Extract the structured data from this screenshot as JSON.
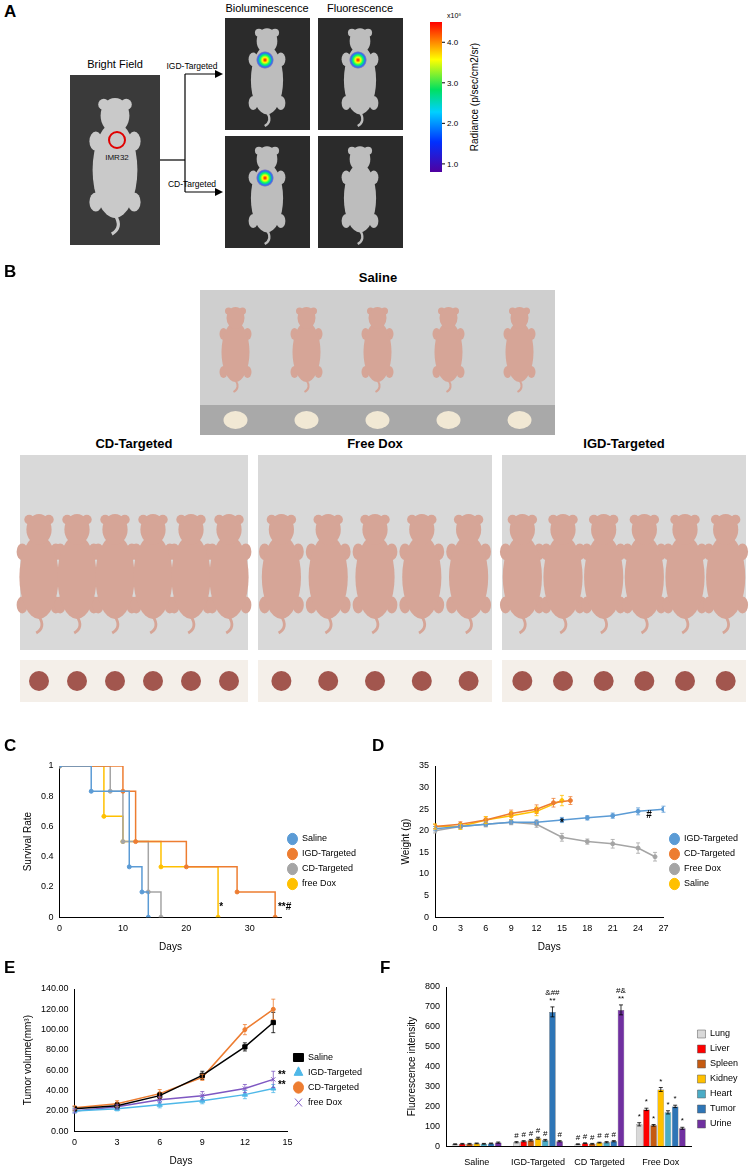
{
  "panel_labels": [
    "A",
    "B",
    "C",
    "D",
    "E",
    "F"
  ],
  "panel_a": {
    "bright_field": "Bright Field",
    "tumor_label": "IMR32",
    "columns": [
      "Bioluminescence",
      "Fluorescence"
    ],
    "rows": [
      {
        "label": "IGD-Targeted",
        "signals": [
          true,
          true
        ]
      },
      {
        "label": "CD-Targeted",
        "signals": [
          true,
          false
        ]
      }
    ],
    "colorbar": {
      "title": "Radiance (p/sec/cm2/sr)",
      "range": [
        0.8,
        4.5
      ],
      "ticks": [
        {
          "value": 1,
          "label": "1.0"
        },
        {
          "value": 2,
          "label": "2.0"
        },
        {
          "value": 3,
          "label": "3.0"
        },
        {
          "value": 4,
          "label": "4.0"
        }
      ],
      "multiplier": "x10⁸"
    }
  },
  "panel_b": {
    "groups": [
      {
        "label": "Saline",
        "mice": 5,
        "tumors": 5
      },
      {
        "label": "CD-Targeted",
        "mice": 6,
        "tumors": 6
      },
      {
        "label": "Free Dox",
        "mice": 5,
        "tumors": 5
      },
      {
        "label": "IGD-Targeted",
        "mice": 6,
        "tumors": 6
      }
    ]
  },
  "chart_data": [
    {
      "type": "line",
      "line_style": "step",
      "marker": "circle",
      "x_label": "Days",
      "y_label": "Survival Rate",
      "xlim": [
        0,
        35
      ],
      "xticks": [
        0,
        10,
        20,
        30
      ],
      "ylim": [
        0,
        1
      ],
      "yticks": [
        0,
        0.2,
        0.4,
        0.6,
        0.8,
        1
      ],
      "grid": false,
      "legend": "right",
      "series": [
        {
          "name": "Saline",
          "color": "#5B9BD5",
          "x": [
            0,
            5,
            11,
            13,
            14
          ],
          "values": [
            1,
            0.833,
            0.333,
            0.167,
            0
          ]
        },
        {
          "name": "IGD-Targeted",
          "color": "#ED7D31",
          "x": [
            0,
            10,
            12,
            20,
            28,
            34
          ],
          "values": [
            1,
            0.833,
            0.5,
            0.333,
            0.167,
            0
          ]
        },
        {
          "name": "CD-Targeted",
          "color": "#A5A5A5",
          "x": [
            0,
            8,
            10,
            14,
            16
          ],
          "values": [
            1,
            0.833,
            0.5,
            0.167,
            0
          ]
        },
        {
          "name": "free Dox",
          "color": "#FFC000",
          "x": [
            0,
            7,
            10,
            16,
            25
          ],
          "values": [
            1,
            0.667,
            0.5,
            0.333,
            0
          ]
        }
      ],
      "annotations": [
        {
          "text": "*",
          "x": 25.5,
          "y": 0.03
        },
        {
          "text": "**#",
          "x": 35.5,
          "y": 0.03
        }
      ]
    },
    {
      "type": "line",
      "marker": "circle",
      "x_label": "Days",
      "y_label": "Weight (g)",
      "xlim": [
        0,
        27
      ],
      "xticks": [
        0,
        3,
        6,
        9,
        12,
        15,
        18,
        21,
        24,
        27
      ],
      "ylim": [
        0,
        35
      ],
      "yticks": [
        0,
        5,
        10,
        15,
        20,
        25,
        30,
        35
      ],
      "grid": false,
      "legend": "right",
      "series": [
        {
          "name": "IGD-Targeted",
          "color": "#5B9BD5",
          "x": [
            0,
            3,
            6,
            9,
            12,
            15,
            18,
            21,
            24,
            27
          ],
          "values": [
            20.5,
            21,
            21.5,
            22,
            22,
            22.5,
            23,
            23.5,
            24.5,
            25
          ],
          "errors": [
            0.5,
            0.5,
            0.5,
            0.5,
            0.5,
            0.6,
            0.5,
            0.6,
            0.8,
            0.7
          ]
        },
        {
          "name": "CD-Targeted",
          "color": "#ED7D31",
          "x": [
            0,
            3,
            6,
            9,
            12,
            14,
            16
          ],
          "values": [
            21,
            21.5,
            22.5,
            24,
            25,
            26.5,
            27
          ],
          "errors": [
            0.5,
            0.6,
            0.7,
            0.8,
            1,
            1,
            0.9
          ]
        },
        {
          "name": "Free Dox",
          "color": "#A5A5A5",
          "x": [
            0,
            3,
            6,
            9,
            12,
            15,
            18,
            21,
            24,
            26
          ],
          "values": [
            20,
            21,
            21.5,
            22,
            21.5,
            18.5,
            17.5,
            17,
            16,
            14
          ],
          "errors": [
            0.5,
            0.5,
            0.6,
            0.6,
            0.7,
            0.9,
            0.6,
            1,
            1.2,
            1
          ]
        },
        {
          "name": "Saline",
          "color": "#FFC000",
          "x": [
            0,
            3,
            6,
            9,
            12,
            15
          ],
          "values": [
            21,
            21,
            22.5,
            23.5,
            24.5,
            27
          ],
          "errors": [
            0.6,
            0.7,
            0.8,
            0.9,
            1,
            1.2
          ]
        }
      ],
      "annotations": [
        {
          "text": "*",
          "x": 15,
          "y": 20.5
        },
        {
          "text": "#",
          "x": 25.3,
          "y": 22.5
        }
      ]
    },
    {
      "type": "line",
      "x_label": "Days",
      "y_label": "Tumor volume(mm³)",
      "x": [
        0,
        3,
        6,
        9,
        12,
        14
      ],
      "xlim": [
        0,
        15
      ],
      "xticks": [
        0,
        3,
        6,
        9,
        12,
        15
      ],
      "ylim": [
        0,
        140
      ],
      "yticks": [
        {
          "value": 0,
          "label": "0.00"
        },
        {
          "value": 20,
          "label": "20.00"
        },
        {
          "value": 40,
          "label": "40.00"
        },
        {
          "value": 60,
          "label": "60.00"
        },
        {
          "value": 80,
          "label": "80.00"
        },
        {
          "value": 100,
          "label": "100.00"
        },
        {
          "value": 120,
          "label": "120.00"
        },
        {
          "value": 140,
          "label": "140.00"
        }
      ],
      "grid": false,
      "legend": "right",
      "series": [
        {
          "name": "Saline",
          "color": "#000000",
          "marker": "square",
          "values": [
            22,
            25,
            35,
            55,
            83,
            107
          ],
          "errors": [
            2,
            3,
            3,
            4,
            4,
            10
          ]
        },
        {
          "name": "IGD-Targeted",
          "color": "#4FB8E8",
          "marker": "triangle",
          "values": [
            20,
            22,
            26,
            30,
            36,
            42
          ],
          "errors": [
            2,
            2,
            3,
            3,
            4,
            4
          ]
        },
        {
          "name": "CD-Targeted",
          "color": "#ED7D31",
          "marker": "circle",
          "values": [
            23,
            27,
            37,
            53,
            100,
            120
          ],
          "errors": [
            2,
            3,
            4,
            3,
            5,
            10
          ]
        },
        {
          "name": "free Dox",
          "color": "#7E57C2",
          "marker": "x",
          "values": [
            20,
            24,
            31,
            35,
            42,
            51
          ],
          "errors": [
            2,
            2,
            3,
            4,
            4,
            8
          ]
        }
      ],
      "annotations": [
        {
          "text": "**",
          "x": 14.6,
          "y": 50
        },
        {
          "text": "**",
          "x": 14.6,
          "y": 40
        }
      ]
    },
    {
      "type": "bar",
      "y_label": "Fluorescence intensity",
      "categories": [
        "Saline",
        "IGD-Targeted",
        "CD Targeted",
        "Free Dox"
      ],
      "ylim": [
        0,
        800
      ],
      "yticks": [
        0,
        100,
        200,
        300,
        400,
        500,
        600,
        700,
        800
      ],
      "grid": false,
      "legend": "right",
      "series": [
        {
          "name": "Lung",
          "color": "#D9D9D9",
          "values": [
            10,
            20,
            10,
            110
          ],
          "errors": [
            2,
            3,
            2,
            8
          ]
        },
        {
          "name": "Liver",
          "color": "#FF0000",
          "values": [
            12,
            25,
            15,
            185
          ],
          "errors": [
            2,
            3,
            2,
            6
          ]
        },
        {
          "name": "Spleen",
          "color": "#C55A11",
          "values": [
            12,
            30,
            12,
            105
          ],
          "errors": [
            2,
            4,
            2,
            4
          ]
        },
        {
          "name": "Kidney",
          "color": "#FFC000",
          "values": [
            14,
            40,
            18,
            285
          ],
          "errors": [
            2,
            5,
            2,
            10
          ]
        },
        {
          "name": "Heart",
          "color": "#4BACC6",
          "values": [
            12,
            30,
            20,
            170
          ],
          "errors": [
            2,
            4,
            3,
            8
          ]
        },
        {
          "name": "Tumor",
          "color": "#2E75B6",
          "values": [
            14,
            675,
            25,
            200
          ],
          "errors": [
            2,
            25,
            3,
            6
          ]
        },
        {
          "name": "Urine",
          "color": "#7030A0",
          "values": [
            18,
            25,
            685,
            90
          ],
          "errors": [
            3,
            3,
            25,
            5
          ]
        }
      ],
      "annotations": [
        {
          "text": "#",
          "category": "IGD-Targeted",
          "series": "Lung"
        },
        {
          "text": "#",
          "category": "IGD-Targeted",
          "series": "Liver"
        },
        {
          "text": "#",
          "category": "IGD-Targeted",
          "series": "Spleen"
        },
        {
          "text": "#",
          "category": "IGD-Targeted",
          "series": "Kidney"
        },
        {
          "text": "#",
          "category": "IGD-Targeted",
          "series": "Heart"
        },
        {
          "text": "**",
          "category": "IGD-Targeted",
          "series": "Tumor"
        },
        {
          "text": "&##",
          "category": "IGD-Targeted",
          "series": "Tumor"
        },
        {
          "text": "#",
          "category": "IGD-Targeted",
          "series": "Urine"
        },
        {
          "text": "#",
          "category": "CD Targeted",
          "series": "Lung"
        },
        {
          "text": "#",
          "category": "CD Targeted",
          "series": "Liver"
        },
        {
          "text": "#",
          "category": "CD Targeted",
          "series": "Spleen"
        },
        {
          "text": "#",
          "category": "CD Targeted",
          "series": "Kidney"
        },
        {
          "text": "#",
          "category": "CD Targeted",
          "series": "Heart"
        },
        {
          "text": "#",
          "category": "CD Targeted",
          "series": "Tumor"
        },
        {
          "text": "**",
          "category": "CD Targeted",
          "series": "Urine"
        },
        {
          "text": "#&",
          "category": "CD Targeted",
          "series": "Urine"
        },
        {
          "text": "*",
          "category": "Free Dox",
          "series": "Lung"
        },
        {
          "text": "*",
          "category": "Free Dox",
          "series": "Liver"
        },
        {
          "text": "*",
          "category": "Free Dox",
          "series": "Spleen"
        },
        {
          "text": "*",
          "category": "Free Dox",
          "series": "Kidney"
        },
        {
          "text": "*",
          "category": "Free Dox",
          "series": "Heart"
        },
        {
          "text": "*",
          "category": "Free Dox",
          "series": "Tumor"
        },
        {
          "text": "*",
          "category": "Free Dox",
          "series": "Urine"
        }
      ]
    }
  ]
}
